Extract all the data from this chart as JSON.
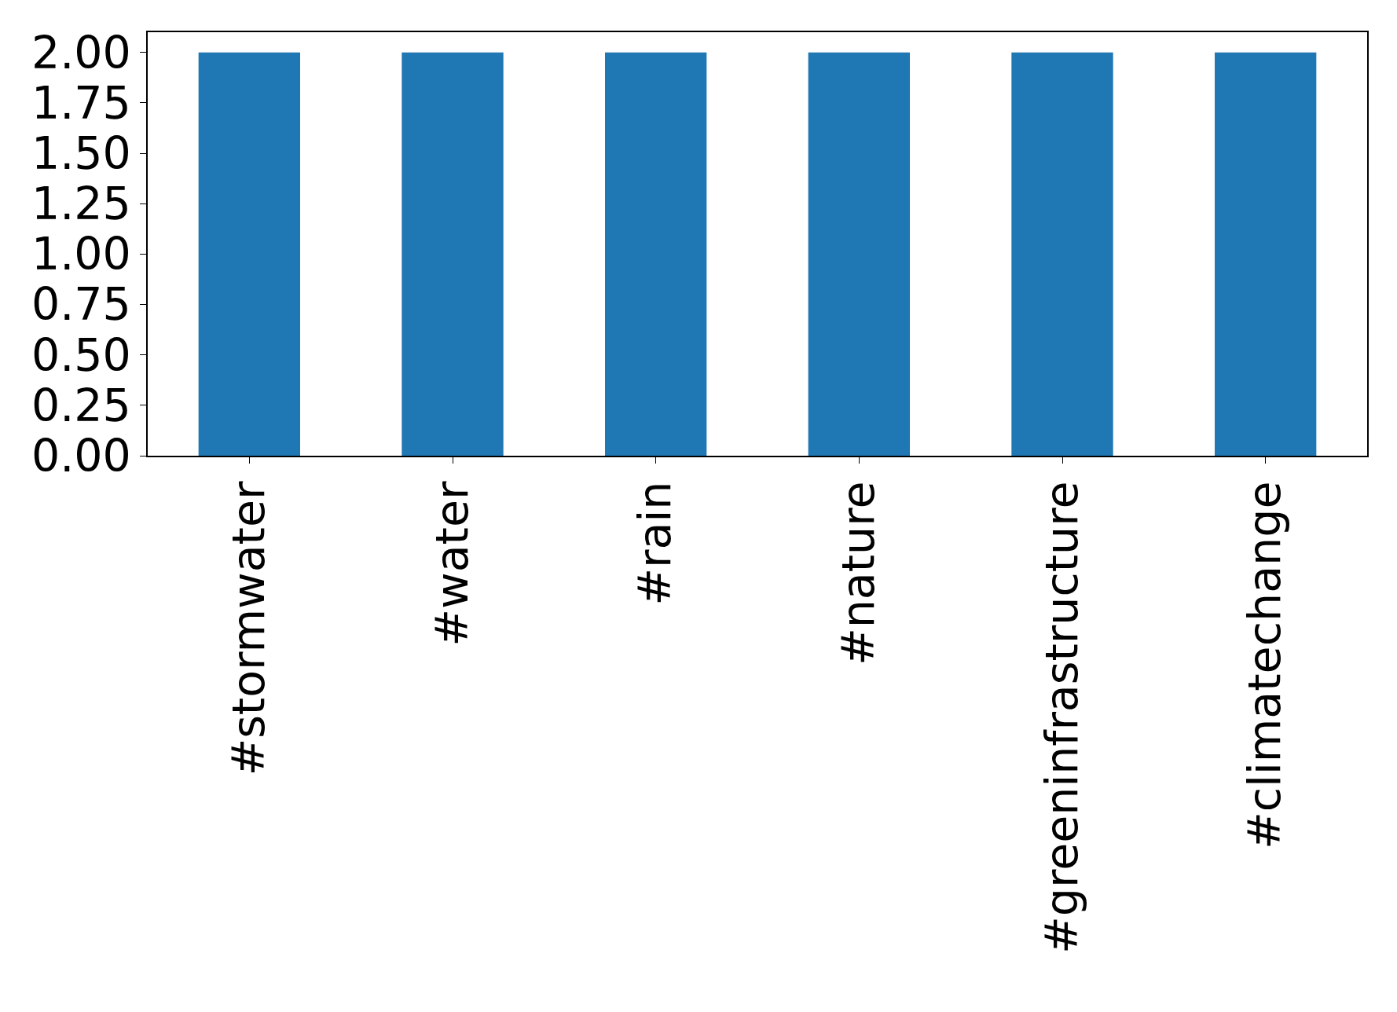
{
  "chart_data": {
    "type": "bar",
    "categories": [
      "#stormwater",
      "#water",
      "#rain",
      "#nature",
      "#greeninfrastructure",
      "#climatechange"
    ],
    "values": [
      2,
      2,
      2,
      2,
      2,
      2
    ],
    "color": "#1f77b4",
    "ylim": [
      0,
      2.1
    ],
    "yticks": [
      {
        "value": 0,
        "label": "0.00"
      },
      {
        "value": 0.25,
        "label": "0.25"
      },
      {
        "value": 0.5,
        "label": "0.50"
      },
      {
        "value": 0.75,
        "label": "0.75"
      },
      {
        "value": 1,
        "label": "1.00"
      },
      {
        "value": 1.25,
        "label": "1.25"
      },
      {
        "value": 1.5,
        "label": "1.50"
      },
      {
        "value": 1.75,
        "label": "1.75"
      },
      {
        "value": 2,
        "label": "2.00"
      }
    ],
    "grid": false
  }
}
